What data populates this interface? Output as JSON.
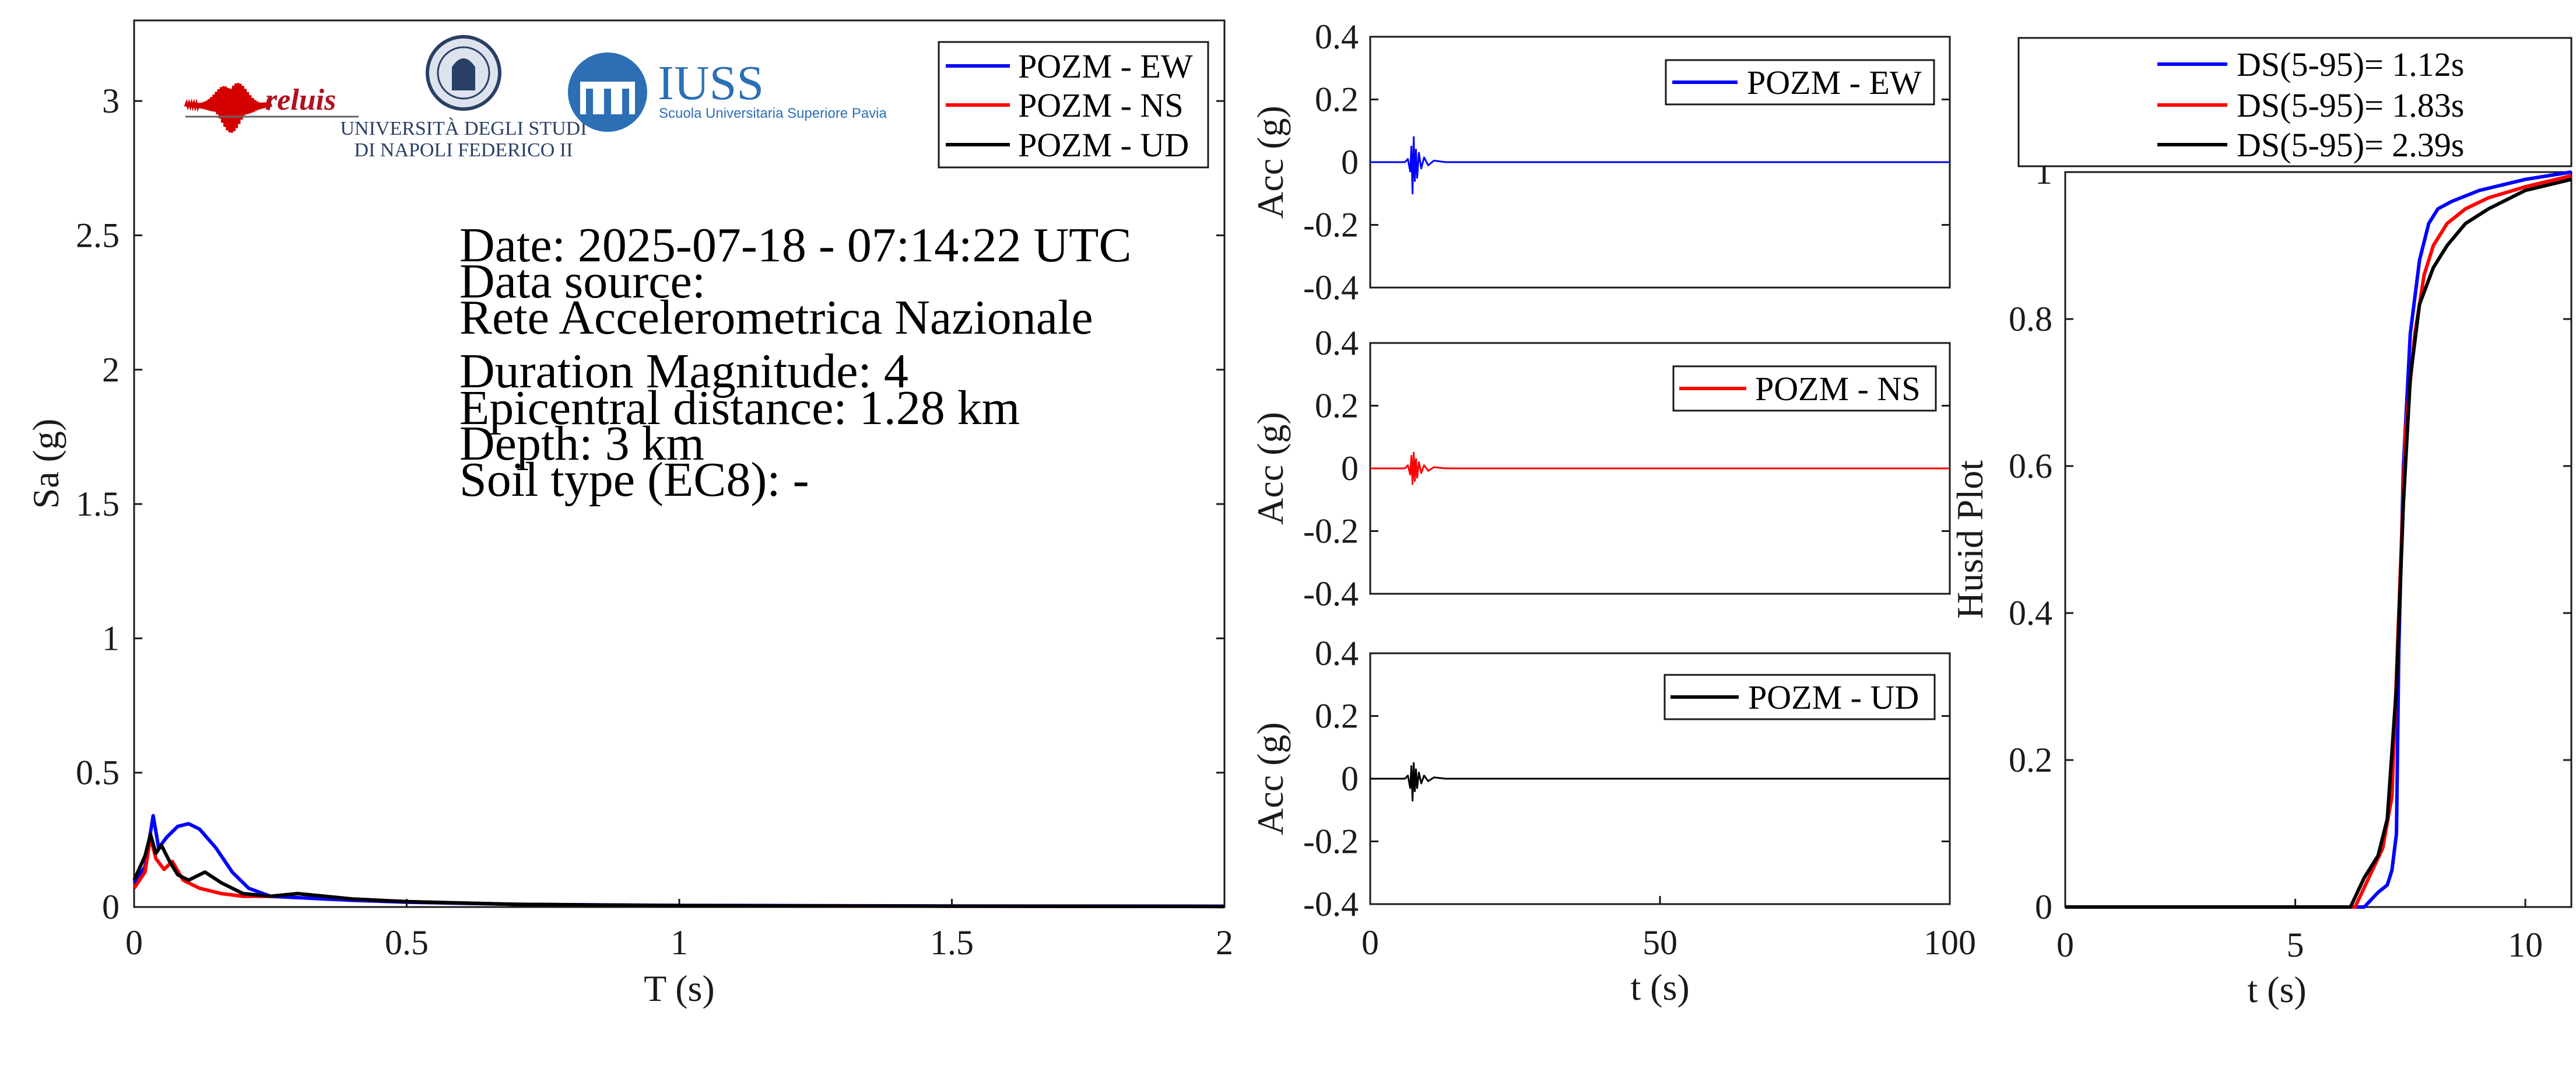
{
  "colors": {
    "ew": "#0000ff",
    "ns": "#ff0000",
    "ud": "#000000"
  },
  "logos": {
    "reluis": "reluis",
    "unina_line1": "UNIVERSITÀ DEGLI STUDI",
    "unina_line2": "DI NAPOLI FEDERICO II",
    "iuss": "IUSS",
    "iuss_sub": "Scuola Universitaria Superiore Pavia"
  },
  "info": {
    "date": "Date: 2025-07-18 - 07:14:22 UTC",
    "source_label": "Data source:",
    "source": "Rete Accelerometrica Nazionale",
    "magnitude": "Duration Magnitude: 4",
    "distance": "Epicentral distance: 1.28 km",
    "depth": "Depth: 3 km",
    "soil": "Soil type (EC8): -"
  },
  "chart_data": [
    {
      "id": "spectra",
      "type": "line",
      "xlabel": "T (s)",
      "ylabel": "Sa (g)",
      "xlim": [
        0,
        2
      ],
      "ylim": [
        0,
        3.3
      ],
      "xticks": [
        "0",
        "0.5",
        "1",
        "1.5",
        "2"
      ],
      "yticks": [
        "0",
        "0.5",
        "1",
        "1.5",
        "2",
        "2.5",
        "3"
      ],
      "legend_position": "top-right",
      "series": [
        {
          "name": "POZM - EW",
          "color": "#0000ff",
          "x": [
            0,
            0.02,
            0.035,
            0.045,
            0.06,
            0.08,
            0.1,
            0.12,
            0.15,
            0.18,
            0.21,
            0.25,
            0.3,
            0.35,
            0.4,
            0.5,
            0.7,
            1.0,
            1.5,
            2.0
          ],
          "y": [
            0.09,
            0.15,
            0.34,
            0.22,
            0.26,
            0.3,
            0.31,
            0.29,
            0.22,
            0.13,
            0.07,
            0.04,
            0.035,
            0.03,
            0.025,
            0.018,
            0.01,
            0.006,
            0.004,
            0.003
          ]
        },
        {
          "name": "POZM - NS",
          "color": "#ff0000",
          "x": [
            0,
            0.02,
            0.03,
            0.04,
            0.055,
            0.07,
            0.09,
            0.12,
            0.16,
            0.2,
            0.25,
            0.3,
            0.35,
            0.4,
            0.5,
            0.7,
            1.0,
            1.5,
            2.0
          ],
          "y": [
            0.07,
            0.13,
            0.26,
            0.18,
            0.14,
            0.17,
            0.1,
            0.07,
            0.05,
            0.04,
            0.04,
            0.05,
            0.04,
            0.03,
            0.02,
            0.01,
            0.005,
            0.003,
            0.002
          ]
        },
        {
          "name": "POZM - UD",
          "color": "#000000",
          "x": [
            0,
            0.02,
            0.03,
            0.04,
            0.05,
            0.065,
            0.08,
            0.1,
            0.13,
            0.16,
            0.2,
            0.25,
            0.3,
            0.35,
            0.4,
            0.5,
            0.7,
            1.0,
            1.5,
            2.0
          ],
          "y": [
            0.1,
            0.19,
            0.27,
            0.2,
            0.23,
            0.17,
            0.12,
            0.1,
            0.13,
            0.09,
            0.05,
            0.04,
            0.05,
            0.04,
            0.03,
            0.02,
            0.01,
            0.005,
            0.003,
            0.002
          ]
        }
      ]
    },
    {
      "id": "acc_ew",
      "type": "line",
      "ylabel": "Acc (g)",
      "xlim": [
        0,
        100
      ],
      "ylim": [
        -0.4,
        0.4
      ],
      "yticks": [
        "0.4",
        "0.2",
        "0",
        "-0.2",
        "-0.4"
      ],
      "legend_position": "top-right",
      "series": [
        {
          "name": "POZM - EW",
          "color": "#0000ff",
          "x": [
            0,
            6,
            6.5,
            6.9,
            7.1,
            7.3,
            7.5,
            7.7,
            7.9,
            8.1,
            8.4,
            8.8,
            9.3,
            10,
            11,
            13,
            100
          ],
          "y": [
            0,
            0,
            0.01,
            -0.03,
            0.05,
            -0.1,
            0.08,
            -0.06,
            0.04,
            -0.05,
            0.03,
            -0.02,
            0.015,
            -0.01,
            0.005,
            0,
            0
          ]
        }
      ]
    },
    {
      "id": "acc_ns",
      "type": "line",
      "ylabel": "Acc (g)",
      "xlim": [
        0,
        100
      ],
      "ylim": [
        -0.4,
        0.4
      ],
      "yticks": [
        "0.4",
        "0.2",
        "0",
        "-0.2",
        "-0.4"
      ],
      "legend_position": "top-right",
      "series": [
        {
          "name": "POZM - NS",
          "color": "#ff0000",
          "x": [
            0,
            6,
            6.5,
            6.9,
            7.1,
            7.3,
            7.5,
            7.7,
            7.9,
            8.1,
            8.4,
            8.8,
            9.3,
            10,
            11,
            13,
            100
          ],
          "y": [
            0,
            0,
            0.01,
            -0.02,
            0.04,
            -0.05,
            0.05,
            -0.04,
            0.03,
            -0.03,
            0.02,
            -0.015,
            0.01,
            -0.008,
            0.004,
            0,
            0
          ]
        }
      ]
    },
    {
      "id": "acc_ud",
      "type": "line",
      "ylabel": "Acc (g)",
      "xlabel": "t (s)",
      "xlim": [
        0,
        100
      ],
      "ylim": [
        -0.4,
        0.4
      ],
      "xticks": [
        "0",
        "50",
        "100"
      ],
      "yticks": [
        "0.4",
        "0.2",
        "0",
        "-0.2",
        "-0.4"
      ],
      "legend_position": "top-right",
      "series": [
        {
          "name": "POZM - UD",
          "color": "#000000",
          "x": [
            0,
            6,
            6.5,
            6.9,
            7.1,
            7.3,
            7.5,
            7.7,
            7.9,
            8.1,
            8.4,
            8.8,
            9.3,
            10,
            11,
            13,
            100
          ],
          "y": [
            0,
            0,
            0.01,
            -0.03,
            0.04,
            -0.07,
            0.05,
            -0.04,
            0.03,
            -0.03,
            0.02,
            -0.015,
            0.01,
            -0.008,
            0.004,
            0,
            0
          ]
        }
      ]
    },
    {
      "id": "husid",
      "type": "line",
      "ylabel": "Husid Plot",
      "xlabel": "t (s)",
      "xlim": [
        0,
        11
      ],
      "ylim": [
        0,
        1
      ],
      "xticks": [
        "0",
        "5",
        "10"
      ],
      "yticks": [
        "0",
        "0.2",
        "0.4",
        "0.6",
        "0.8",
        "1"
      ],
      "legend_position": "top-outside",
      "series": [
        {
          "name": "DS(5-95)= 1.12s",
          "color": "#0000ff",
          "x": [
            0,
            6.5,
            6.8,
            7.0,
            7.1,
            7.2,
            7.25,
            7.35,
            7.5,
            7.7,
            7.9,
            8.1,
            8.4,
            9,
            10,
            11
          ],
          "y": [
            0,
            0,
            0.02,
            0.03,
            0.05,
            0.1,
            0.35,
            0.6,
            0.78,
            0.88,
            0.93,
            0.95,
            0.96,
            0.975,
            0.99,
            1.0
          ]
        },
        {
          "name": "DS(5-95)= 1.83s",
          "color": "#ff0000",
          "x": [
            0,
            6.3,
            6.6,
            6.9,
            7.1,
            7.25,
            7.4,
            7.6,
            7.8,
            8.0,
            8.3,
            8.7,
            9.2,
            10,
            11
          ],
          "y": [
            0,
            0,
            0.04,
            0.08,
            0.15,
            0.4,
            0.65,
            0.78,
            0.86,
            0.9,
            0.93,
            0.95,
            0.965,
            0.98,
            0.995
          ]
        },
        {
          "name": "DS(5-95)= 2.39s",
          "color": "#000000",
          "x": [
            0,
            6.2,
            6.5,
            6.8,
            7.0,
            7.2,
            7.35,
            7.5,
            7.7,
            8.0,
            8.3,
            8.7,
            9.2,
            10,
            11
          ],
          "y": [
            0,
            0,
            0.04,
            0.07,
            0.12,
            0.3,
            0.55,
            0.72,
            0.82,
            0.87,
            0.9,
            0.93,
            0.95,
            0.975,
            0.99
          ]
        }
      ]
    }
  ]
}
